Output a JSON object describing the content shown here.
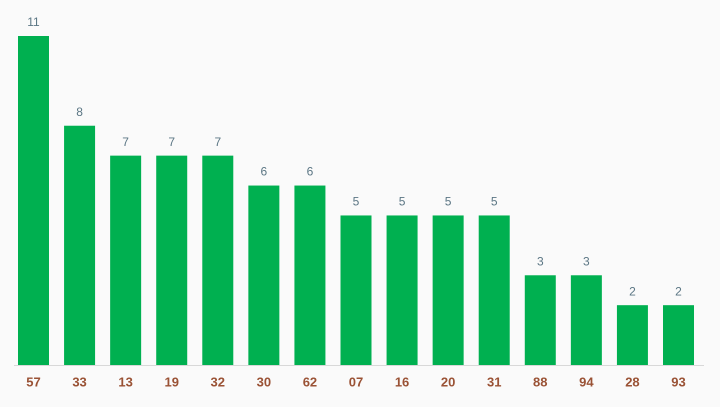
{
  "chart_data": {
    "type": "bar",
    "categories": [
      "57",
      "33",
      "13",
      "19",
      "32",
      "30",
      "62",
      "07",
      "16",
      "20",
      "31",
      "88",
      "94",
      "28",
      "93"
    ],
    "values": [
      11,
      8,
      7,
      7,
      7,
      6,
      6,
      5,
      5,
      5,
      5,
      3,
      3,
      2,
      2
    ],
    "color": "#00b050"
  }
}
